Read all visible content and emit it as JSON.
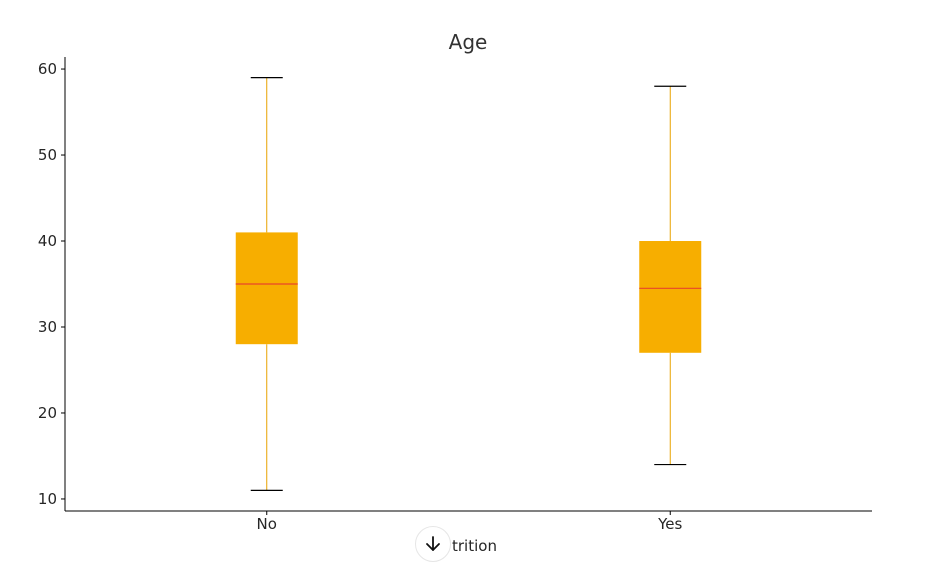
{
  "chart_data": {
    "type": "box",
    "title": "Age",
    "xlabel": "Attrition",
    "ylabel": "",
    "categories": [
      "No",
      "Yes"
    ],
    "boxes": [
      {
        "category": "No",
        "whisker_low": 11,
        "q1": 28,
        "median": 35,
        "q3": 41,
        "whisker_high": 59
      },
      {
        "category": "Yes",
        "whisker_low": 14,
        "q1": 27,
        "median": 34.5,
        "q3": 40,
        "whisker_high": 58
      }
    ],
    "ylim": [
      8.6,
      61.4
    ],
    "yticks": [
      10,
      20,
      30,
      40,
      50,
      60
    ],
    "grid": false,
    "legend": "none"
  },
  "colors": {
    "box_fill": "#f7ae00",
    "whisker": "#e8a200",
    "median": "#e8452a",
    "cap": "#000000",
    "axis": "#000000",
    "text": "#262626",
    "title": "#333333"
  },
  "overlay": {
    "visible_xlabel": "trition",
    "scroll_icon": "arrow-down-icon"
  }
}
